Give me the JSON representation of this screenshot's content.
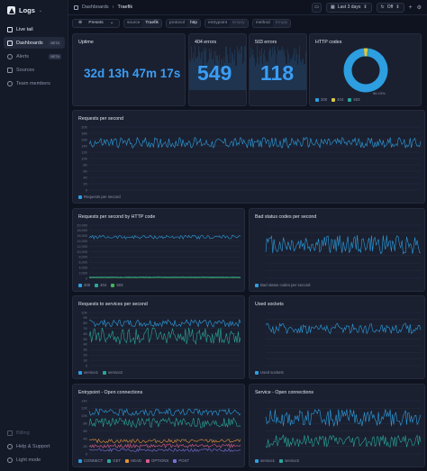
{
  "app": {
    "name": "Logs"
  },
  "nav": {
    "items": [
      {
        "label": "Live tail",
        "badge": ""
      },
      {
        "label": "Dashboards",
        "badge": "BETA"
      },
      {
        "label": "Alerts",
        "badge": "BETA"
      },
      {
        "label": "Sources",
        "badge": ""
      },
      {
        "label": "Team members",
        "badge": ""
      }
    ],
    "footer": [
      "Billing",
      "Help & Support",
      "Light mode"
    ]
  },
  "topbar": {
    "breadcrumb_root": "Dashboards",
    "breadcrumb_current": "Traefik",
    "range_label": "Last 3 days",
    "refresh_label": "Off"
  },
  "filters": {
    "presets_label": "Presets",
    "items": [
      {
        "key": "source",
        "value": "Traefik",
        "placeholder": false
      },
      {
        "key": "protocol",
        "value": "http",
        "placeholder": false
      },
      {
        "key": "entrypoint",
        "value": "Empty",
        "placeholder": true
      },
      {
        "key": "method",
        "value": "Empty",
        "placeholder": true
      }
    ]
  },
  "colors": {
    "blue": "#2d9ee0",
    "teal": "#2aa79b",
    "green": "#47b35a",
    "orange": "#e4903a",
    "pink": "#d85b8a",
    "violet": "#7b6fd6",
    "yellow": "#d9c84a"
  },
  "stats": {
    "uptime": {
      "title": "Uptime",
      "value": "32d 13h 47m 17s"
    },
    "e404": {
      "title": "404 errors",
      "value": "549"
    },
    "e503": {
      "title": "503 errors",
      "value": "118"
    }
  },
  "chart_data": [
    {
      "type": "pie",
      "title": "HTTP codes",
      "categories": [
        "200",
        "404",
        "503"
      ],
      "values": [
        96.23,
        2.85,
        0.92
      ],
      "annotation": "96.23%"
    },
    {
      "type": "line",
      "title": "Requests per second",
      "ylim": [
        0,
        20000
      ],
      "ticks": [
        "20K",
        "18K",
        "16K",
        "14K",
        "12K",
        "10K",
        "8K",
        "6K",
        "4K",
        "2K",
        "0"
      ],
      "series": [
        {
          "name": "Requests per second",
          "base": 15000,
          "amp": 1700
        }
      ]
    },
    {
      "type": "line",
      "title": "Requests per second by HTTP code",
      "ylim": [
        0,
        20000
      ],
      "ticks": [
        "20,000",
        "18,000",
        "16,000",
        "14,000",
        "12,000",
        "10,000",
        "8,000",
        "6,000",
        "4,000",
        "2,000",
        "0"
      ],
      "series": [
        {
          "name": "200",
          "base": 15500,
          "amp": 700
        },
        {
          "name": "404",
          "base": 500,
          "amp": 150
        },
        {
          "name": "503",
          "base": 200,
          "amp": 100
        }
      ]
    },
    {
      "type": "line",
      "title": "Bad status codes per second",
      "ylim": [
        0,
        500
      ],
      "ticks": [
        "",
        "",
        "",
        "",
        "",
        "",
        "",
        ""
      ],
      "series": [
        {
          "name": "Bad status codes per second",
          "base": 320,
          "amp": 90
        }
      ]
    },
    {
      "type": "line",
      "title": "Requests to services per second",
      "ylim": [
        0,
        10000
      ],
      "ticks": [
        "10K",
        "9K",
        "8K",
        "7K",
        "6K",
        "5K",
        "4K",
        "3K",
        "2K",
        "1K",
        "0"
      ],
      "series": [
        {
          "name": "service1",
          "base": 8000,
          "amp": 700
        },
        {
          "name": "service2",
          "base": 5600,
          "amp": 1600
        }
      ]
    },
    {
      "type": "line",
      "title": "Used sockets",
      "ylim": [
        0,
        100
      ],
      "ticks": [
        "",
        "",
        "",
        "",
        "",
        "",
        "",
        "",
        ""
      ],
      "series": [
        {
          "name": "Used sockets",
          "base": 70,
          "amp": 10
        }
      ]
    },
    {
      "type": "line",
      "title": "Entrypoint - Open connections",
      "ylim": [
        0,
        14000
      ],
      "ticks": [
        "14K",
        "12K",
        "10K",
        "8K",
        "6K",
        "4K",
        "2K",
        "0"
      ],
      "series": [
        {
          "name": "CONNECT",
          "base": 11000,
          "amp": 900
        },
        {
          "name": "GET",
          "base": 8200,
          "amp": 1300
        },
        {
          "name": "HEAD",
          "base": 3400,
          "amp": 500
        },
        {
          "name": "OPTIONS",
          "base": 2100,
          "amp": 500
        },
        {
          "name": "POST",
          "base": 1000,
          "amp": 400
        }
      ]
    },
    {
      "type": "line",
      "title": "Service - Open connections",
      "ylim": [
        0,
        100
      ],
      "ticks": [
        "",
        "",
        "",
        "",
        "",
        "",
        "",
        ""
      ],
      "series": [
        {
          "name": "service1",
          "base": 68,
          "amp": 16
        },
        {
          "name": "service2",
          "base": 24,
          "amp": 12
        }
      ]
    }
  ]
}
